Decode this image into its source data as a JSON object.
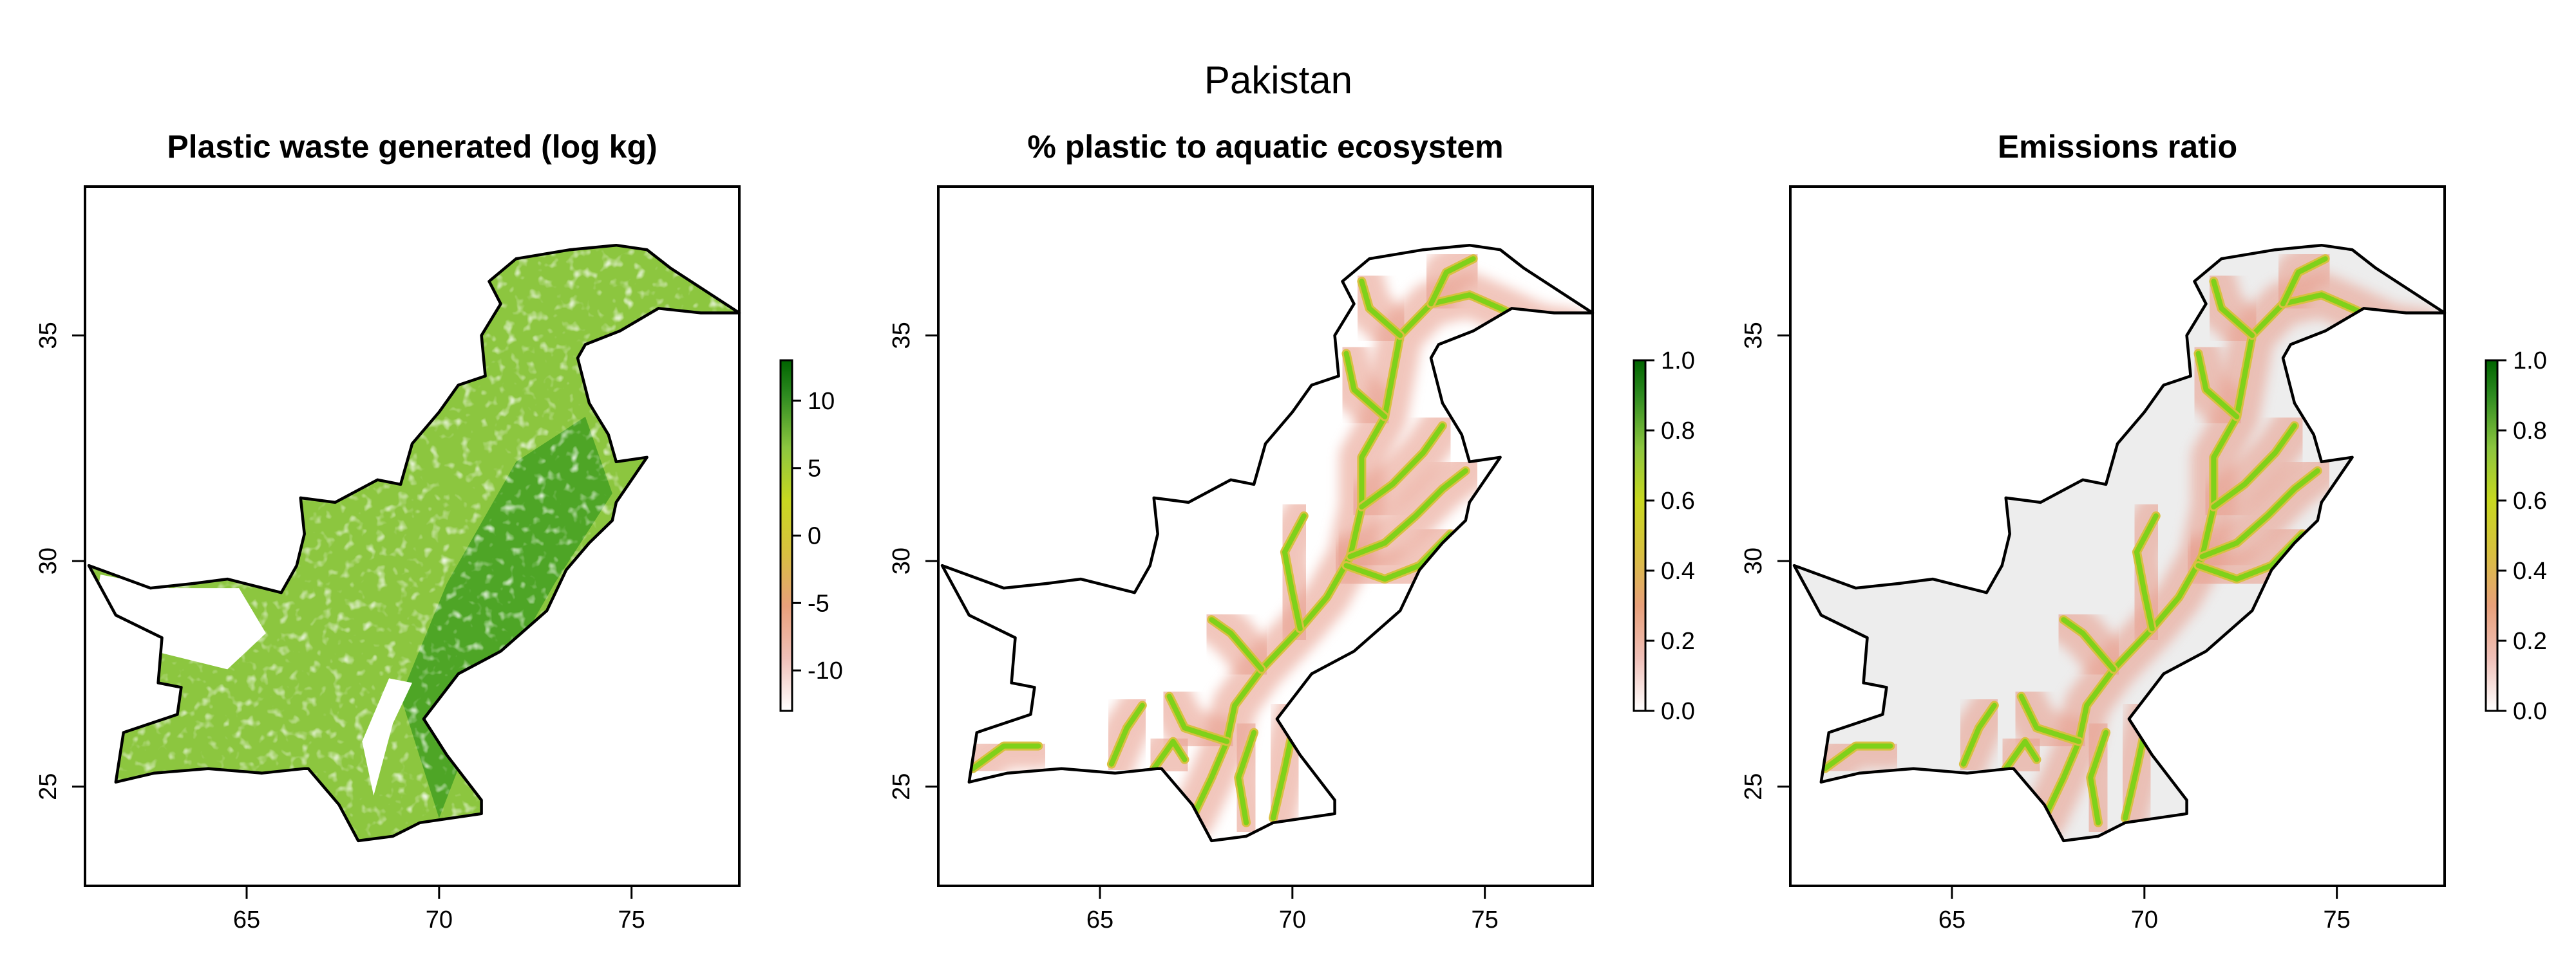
{
  "figure": {
    "title": "Pakistan",
    "colors": {
      "land_fill": "#8cc63f",
      "land_dense": "#3a9a1f",
      "river": "#7fd11a",
      "river_halo": "#e8a090",
      "grey_fill": "#ededed",
      "frame": "#000000"
    }
  },
  "chart_data": [
    {
      "type": "heatmap",
      "title": "Plastic waste generated (log kg)",
      "xlabel": "",
      "ylabel": "",
      "xlim": [
        60.8,
        77.8
      ],
      "ylim": [
        22.8,
        38.3
      ],
      "x_ticks": [
        65,
        70,
        75
      ],
      "y_ticks": [
        25,
        30,
        35
      ],
      "legend": {
        "position": "right",
        "ticks": [
          10,
          5,
          0,
          -5,
          -10
        ],
        "range": [
          -13,
          13
        ],
        "colors": [
          "#ffffff",
          "#f0c0b8",
          "#e8a07a",
          "#d8c040",
          "#c8d820",
          "#8cc63f",
          "#2e8b20",
          "#006400"
        ]
      },
      "fill": "waste"
    },
    {
      "type": "heatmap",
      "title": "% plastic to aquatic ecosystem",
      "xlabel": "",
      "ylabel": "",
      "xlim": [
        60.8,
        77.8
      ],
      "ylim": [
        22.8,
        38.3
      ],
      "x_ticks": [
        65,
        70,
        75
      ],
      "y_ticks": [
        25,
        30,
        35
      ],
      "legend": {
        "position": "right",
        "ticks": [
          "1.0",
          "0.8",
          "0.6",
          "0.4",
          "0.2",
          "0.0"
        ],
        "range": [
          0,
          1
        ],
        "colors": [
          "#ffffff",
          "#f0c0b8",
          "#e8a07a",
          "#d8c040",
          "#c8d820",
          "#8cc63f",
          "#2e8b20",
          "#006400"
        ]
      },
      "fill": "aquatic"
    },
    {
      "type": "heatmap",
      "title": "Emissions ratio",
      "xlabel": "",
      "ylabel": "",
      "xlim": [
        60.8,
        77.8
      ],
      "ylim": [
        22.8,
        38.3
      ],
      "x_ticks": [
        65,
        70,
        75
      ],
      "y_ticks": [
        25,
        30,
        35
      ],
      "legend": {
        "position": "right",
        "ticks": [
          "1.0",
          "0.8",
          "0.6",
          "0.4",
          "0.2",
          "0.0"
        ],
        "range": [
          0,
          1
        ],
        "colors": [
          "#ffffff",
          "#f0c0b8",
          "#e8a07a",
          "#d8c040",
          "#c8d820",
          "#8cc63f",
          "#2e8b20",
          "#006400"
        ]
      },
      "fill": "emissions"
    }
  ],
  "border_lonlat": [
    [
      60.9,
      29.9
    ],
    [
      62.5,
      29.4
    ],
    [
      63.6,
      29.5
    ],
    [
      64.5,
      29.6
    ],
    [
      65.9,
      29.3
    ],
    [
      66.3,
      29.9
    ],
    [
      66.5,
      30.6
    ],
    [
      66.4,
      31.4
    ],
    [
      67.3,
      31.3
    ],
    [
      68.4,
      31.8
    ],
    [
      69.0,
      31.7
    ],
    [
      69.3,
      32.6
    ],
    [
      70.0,
      33.3
    ],
    [
      70.5,
      33.9
    ],
    [
      71.2,
      34.1
    ],
    [
      71.1,
      35.0
    ],
    [
      71.6,
      35.7
    ],
    [
      71.3,
      36.2
    ],
    [
      72.0,
      36.7
    ],
    [
      73.4,
      36.9
    ],
    [
      74.6,
      37.0
    ],
    [
      75.4,
      36.9
    ],
    [
      76.0,
      36.5
    ],
    [
      77.8,
      35.5
    ],
    [
      76.8,
      35.5
    ],
    [
      75.7,
      35.6
    ],
    [
      74.7,
      35.1
    ],
    [
      73.8,
      34.8
    ],
    [
      73.6,
      34.5
    ],
    [
      73.9,
      33.5
    ],
    [
      74.4,
      32.8
    ],
    [
      74.6,
      32.2
    ],
    [
      75.4,
      32.3
    ],
    [
      74.6,
      31.3
    ],
    [
      74.5,
      30.9
    ],
    [
      73.9,
      30.4
    ],
    [
      73.3,
      29.8
    ],
    [
      72.8,
      28.9
    ],
    [
      71.6,
      28.0
    ],
    [
      70.5,
      27.5
    ],
    [
      69.6,
      26.5
    ],
    [
      70.2,
      25.7
    ],
    [
      71.1,
      24.7
    ],
    [
      71.1,
      24.4
    ],
    [
      70.3,
      24.3
    ],
    [
      69.5,
      24.2
    ],
    [
      68.8,
      23.9
    ],
    [
      67.9,
      23.8
    ],
    [
      67.4,
      24.6
    ],
    [
      66.6,
      25.4
    ],
    [
      66.5,
      25.4
    ],
    [
      65.4,
      25.3
    ],
    [
      64.0,
      25.4
    ],
    [
      62.6,
      25.3
    ],
    [
      61.6,
      25.1
    ],
    [
      61.8,
      26.2
    ],
    [
      63.2,
      26.6
    ],
    [
      63.3,
      27.2
    ],
    [
      62.7,
      27.3
    ],
    [
      62.8,
      28.3
    ],
    [
      61.6,
      28.8
    ],
    [
      60.9,
      29.9
    ]
  ],
  "rivers_lonlat": [
    [
      [
        67.4,
        24.3
      ],
      [
        67.9,
        25.2
      ],
      [
        68.3,
        26.0
      ],
      [
        68.5,
        26.8
      ],
      [
        69.2,
        27.6
      ],
      [
        70.2,
        28.5
      ],
      [
        70.9,
        29.2
      ],
      [
        71.5,
        30.1
      ],
      [
        71.8,
        31.2
      ],
      [
        71.8,
        32.3
      ],
      [
        72.4,
        33.2
      ],
      [
        72.6,
        34.1
      ],
      [
        72.8,
        35.0
      ],
      [
        73.6,
        35.7
      ],
      [
        74.6,
        35.9
      ],
      [
        75.4,
        35.6
      ],
      [
        76.4,
        35.2
      ],
      [
        77.2,
        35.1
      ]
    ],
    [
      [
        71.5,
        30.1
      ],
      [
        72.4,
        30.4
      ],
      [
        73.2,
        31.0
      ],
      [
        73.9,
        31.6
      ],
      [
        74.5,
        32.0
      ]
    ],
    [
      [
        71.8,
        31.2
      ],
      [
        72.6,
        31.7
      ],
      [
        73.4,
        32.4
      ],
      [
        73.9,
        33.0
      ]
    ],
    [
      [
        71.4,
        29.9
      ],
      [
        72.4,
        29.6
      ],
      [
        73.3,
        29.9
      ],
      [
        74.1,
        30.6
      ]
    ],
    [
      [
        72.8,
        35.0
      ],
      [
        72.0,
        35.6
      ],
      [
        71.8,
        36.2
      ]
    ],
    [
      [
        73.6,
        35.7
      ],
      [
        74.0,
        36.4
      ],
      [
        74.7,
        36.7
      ]
    ],
    [
      [
        72.4,
        33.2
      ],
      [
        71.6,
        33.8
      ],
      [
        71.4,
        34.6
      ]
    ],
    [
      [
        69.2,
        27.6
      ],
      [
        68.4,
        28.4
      ],
      [
        67.9,
        28.7
      ]
    ],
    [
      [
        68.3,
        26.0
      ],
      [
        67.2,
        26.3
      ],
      [
        66.8,
        27.0
      ]
    ],
    [
      [
        70.2,
        28.5
      ],
      [
        70.0,
        29.3
      ],
      [
        69.8,
        30.2
      ],
      [
        70.3,
        31.0
      ]
    ],
    [
      [
        61.7,
        25.4
      ],
      [
        62.5,
        25.9
      ],
      [
        63.4,
        25.9
      ]
    ],
    [
      [
        65.3,
        25.5
      ],
      [
        65.7,
        26.3
      ],
      [
        66.1,
        26.8
      ]
    ],
    [
      [
        66.4,
        25.4
      ],
      [
        66.9,
        26.0
      ],
      [
        67.2,
        25.6
      ]
    ],
    [
      [
        69.5,
        24.3
      ],
      [
        69.8,
        25.4
      ],
      [
        70.1,
        26.6
      ]
    ],
    [
      [
        68.8,
        24.2
      ],
      [
        68.6,
        25.2
      ],
      [
        69.0,
        26.2
      ]
    ]
  ]
}
